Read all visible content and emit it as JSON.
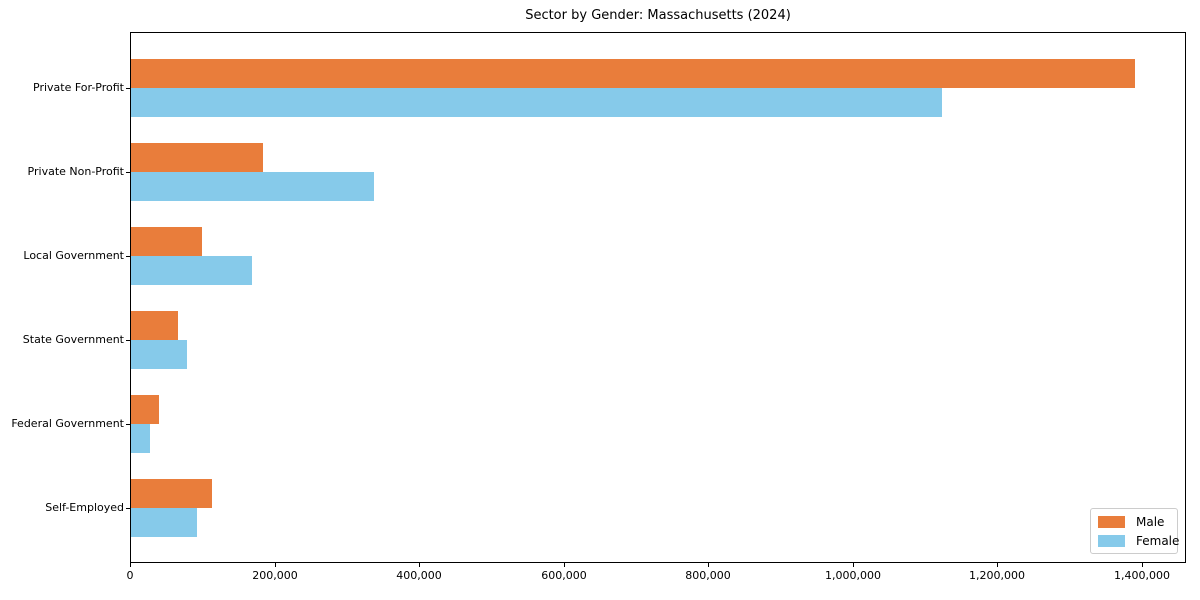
{
  "chart_data": {
    "type": "bar",
    "orientation": "horizontal",
    "title": "Sector by Gender: Massachusetts (2024)",
    "categories": [
      "Private For-Profit",
      "Private Non-Profit",
      "Local Government",
      "State Government",
      "Federal Government",
      "Self-Employed"
    ],
    "series": [
      {
        "name": "Male",
        "color": "#e97d3b",
        "values": [
          1390000,
          182000,
          98000,
          65000,
          39000,
          112000
        ]
      },
      {
        "name": "Female",
        "color": "#86caea",
        "values": [
          1123000,
          336000,
          167000,
          77000,
          26000,
          92000
        ]
      }
    ],
    "xlabel": "",
    "ylabel": "",
    "xlim": [
      0,
      1460000
    ],
    "xticks": [
      0,
      200000,
      400000,
      600000,
      800000,
      1000000,
      1200000,
      1400000
    ],
    "xtick_labels": [
      "0",
      "200,000",
      "400,000",
      "600,000",
      "800,000",
      "1,000,000",
      "1,200,000",
      "1,400,000"
    ],
    "grid": false,
    "legend": {
      "position": "lower right",
      "entries": [
        "Male",
        "Female"
      ]
    }
  }
}
